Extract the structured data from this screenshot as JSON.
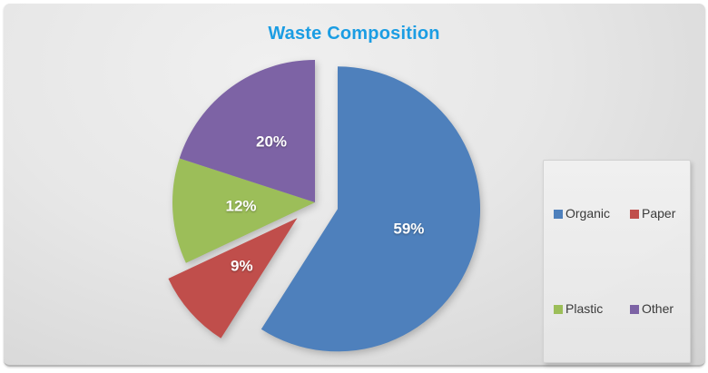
{
  "title": {
    "text": "Waste Composition",
    "color": "#1b9de3"
  },
  "chart_data": {
    "type": "pie",
    "title": "Waste Composition",
    "direction": "clockwise",
    "start_angle_deg": 0,
    "legend_position": "right",
    "data_labels": "percent",
    "background_color": "#e7e7e7",
    "slices": [
      {
        "label": "Organic",
        "value": 59,
        "display": "59%",
        "color": "#4E80BC",
        "exploded": true
      },
      {
        "label": "Paper",
        "value": 9,
        "display": "9%",
        "color": "#C04E4B",
        "exploded": true
      },
      {
        "label": "Plastic",
        "value": 12,
        "display": "12%",
        "color": "#9CBE59",
        "exploded": false
      },
      {
        "label": "Other",
        "value": 20,
        "display": "20%",
        "color": "#7D63A5",
        "exploded": false
      }
    ]
  },
  "legend": {
    "entries": [
      "Organic",
      "Paper",
      "Plastic",
      "Other"
    ]
  }
}
